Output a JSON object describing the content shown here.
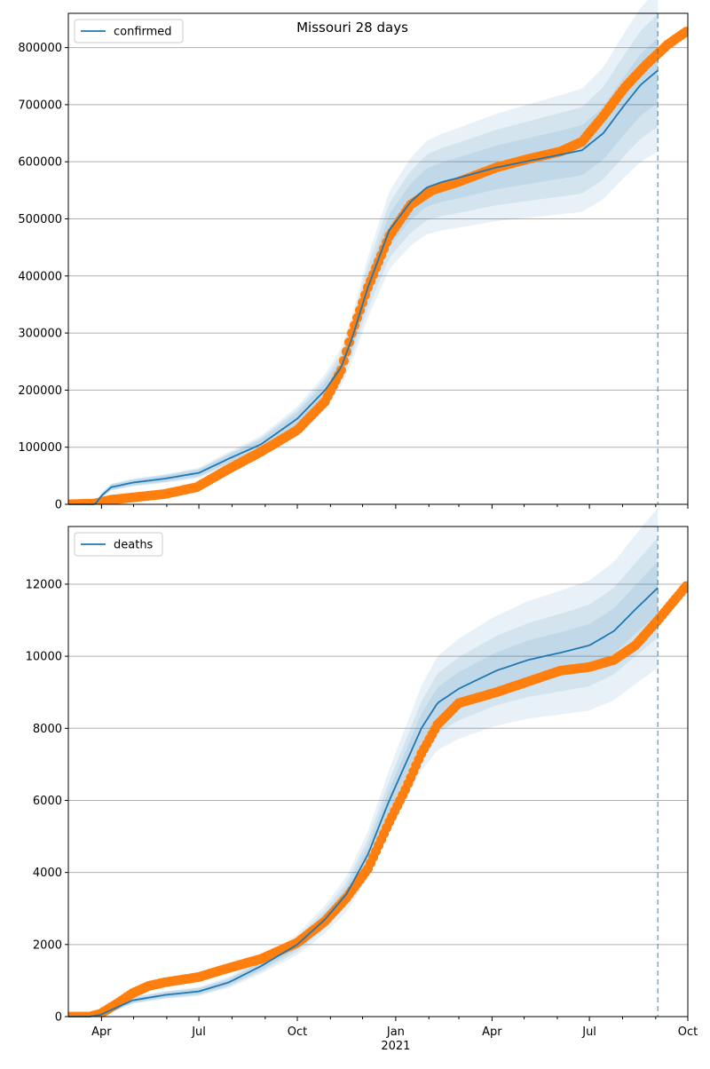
{
  "figure_title": "Missouri 28 days",
  "colors": {
    "model": "#1f77b4",
    "observed": "#ff7f0e",
    "band": "#1f77b4",
    "grid": "#b0b0b0",
    "axis": "#000000"
  },
  "x_axis": {
    "start": "2020-03-01",
    "end": "2021-10-01",
    "month_ticks": [
      "Apr",
      "Jul",
      "Oct",
      "Jan",
      "Apr",
      "Jul",
      "Oct"
    ],
    "month_tick_days": [
      31,
      122,
      214,
      306,
      396,
      487,
      579
    ],
    "year_label": "2021",
    "minor_tick_days": [
      61,
      92,
      153,
      184,
      245,
      275,
      337,
      365,
      426,
      457,
      518,
      549
    ],
    "forecast_day": 551
  },
  "chart_data": [
    {
      "type": "line",
      "name": "confirmed",
      "legend": "confirmed",
      "ylim": [
        0,
        860000
      ],
      "yticks": [
        0,
        100000,
        200000,
        300000,
        400000,
        500000,
        600000,
        700000,
        800000
      ],
      "ytick_labels": [
        "0",
        "100000",
        "200000",
        "300000",
        "400000",
        "500000",
        "600000",
        "700000",
        "800000"
      ],
      "model": {
        "x": [
          0,
          25,
          31,
          40,
          60,
          90,
          122,
          150,
          180,
          214,
          240,
          255,
          265,
          280,
          300,
          320,
          335,
          350,
          365,
          400,
          440,
          480,
          500,
          520,
          535,
          551
        ],
        "y": [
          0,
          0,
          15000,
          30000,
          38000,
          45000,
          55000,
          80000,
          105000,
          150000,
          200000,
          240000,
          290000,
          380000,
          480000,
          530000,
          555000,
          565000,
          572000,
          590000,
          605000,
          620000,
          650000,
          700000,
          735000,
          760000
        ]
      },
      "band_spread": [
        0.05,
        0.09,
        0.13
      ],
      "observed": {
        "x": [
          0,
          25,
          40,
          60,
          90,
          120,
          150,
          180,
          214,
          240,
          255,
          265,
          280,
          300,
          320,
          340,
          365,
          400,
          430,
          460,
          480,
          500,
          520,
          540,
          560,
          579
        ],
        "y": [
          0,
          1500,
          8000,
          12000,
          18000,
          30000,
          62000,
          92000,
          130000,
          180000,
          235000,
          300000,
          380000,
          470000,
          525000,
          550000,
          565000,
          590000,
          605000,
          618000,
          635000,
          680000,
          730000,
          770000,
          805000,
          830000
        ]
      }
    },
    {
      "type": "line",
      "name": "deaths",
      "legend": "deaths",
      "ylim": [
        0,
        13600
      ],
      "yticks": [
        0,
        2000,
        4000,
        6000,
        8000,
        10000,
        12000
      ],
      "ytick_labels": [
        "0",
        "2000",
        "4000",
        "6000",
        "8000",
        "10000",
        "12000"
      ],
      "model": {
        "x": [
          0,
          20,
          30,
          45,
          60,
          90,
          122,
          150,
          180,
          214,
          240,
          260,
          280,
          300,
          315,
          330,
          345,
          365,
          400,
          430,
          460,
          487,
          510,
          530,
          551
        ],
        "y": [
          0,
          0,
          50,
          250,
          450,
          600,
          700,
          950,
          1400,
          2000,
          2700,
          3400,
          4500,
          6000,
          7000,
          8000,
          8700,
          9100,
          9600,
          9900,
          10100,
          10300,
          10700,
          11300,
          11900
        ]
      },
      "band_spread": [
        0.04,
        0.08,
        0.13
      ],
      "observed": {
        "x": [
          0,
          20,
          30,
          45,
          60,
          75,
          90,
          122,
          150,
          180,
          214,
          240,
          260,
          280,
          300,
          315,
          330,
          345,
          365,
          400,
          430,
          460,
          487,
          510,
          530,
          551,
          565,
          579
        ],
        "y": [
          0,
          0,
          80,
          350,
          650,
          850,
          950,
          1100,
          1350,
          1600,
          2050,
          2650,
          3300,
          4100,
          5400,
          6300,
          7300,
          8100,
          8700,
          9000,
          9300,
          9600,
          9700,
          9900,
          10300,
          11000,
          11500,
          12000
        ]
      }
    }
  ]
}
